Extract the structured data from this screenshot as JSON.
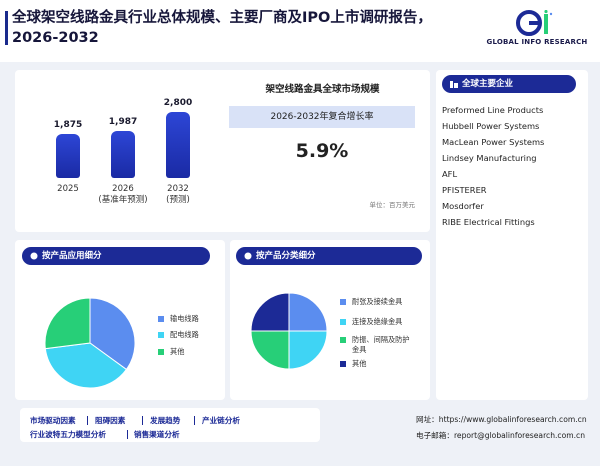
{
  "header": {
    "title": "全球架空线路金具行业总体规模、主要厂商及IPO上市调研报告，2026-2032",
    "logo_text": "GLOBAL INFO RESEARCH"
  },
  "market": {
    "bars": [
      {
        "value_label": "1,875",
        "year": "2025",
        "sub": ""
      },
      {
        "value_label": "1,987",
        "year": "2026",
        "sub": "(基准年预测)"
      },
      {
        "value_label": "2,800",
        "year": "2032",
        "sub": "(预测)"
      }
    ],
    "panel_title": "架空线路金具全球市场规模",
    "cagr_label": "2026-2032年复合增长率",
    "cagr_value": "5.9%",
    "unit": "单位：百万美元"
  },
  "chart_data": [
    {
      "type": "bar",
      "categories": [
        "2025",
        "2026",
        "2032"
      ],
      "values": [
        1875,
        1987,
        2800
      ]
    },
    {
      "type": "pie",
      "title": "按产品应用细分",
      "labels": [
        "输电线路",
        "配电线路",
        "其他"
      ],
      "values": [
        35,
        38,
        27
      ],
      "colors": [
        "#5b8def",
        "#3fd4f4",
        "#27cf78"
      ]
    },
    {
      "type": "pie",
      "title": "按产品分类细分",
      "labels": [
        "耐张及接续金具",
        "连接及绝缘金具",
        "防振、间隔及防护金具",
        "其他"
      ],
      "values": [
        25,
        25,
        25,
        25
      ],
      "colors": [
        "#5b8def",
        "#3fd4f4",
        "#27cf78",
        "#1c2a96"
      ]
    }
  ],
  "companies": {
    "title": "全球主要企业",
    "items": [
      "Preformed Line Products",
      "Hubbell Power Systems",
      "MacLean Power Systems",
      "Lindsey Manufacturing",
      "AFL",
      "PFISTERER",
      "Mosdorfer",
      "RIBE Electrical Fittings"
    ]
  },
  "application": {
    "title": "按产品应用细分",
    "legend": [
      "输电线路",
      "配电线路",
      "其他"
    ]
  },
  "product": {
    "title": "按产品分类细分",
    "legend": [
      "耐张及接续金具",
      "连接及绝缘金具",
      "防振、间隔及防护\n金具",
      "其他"
    ]
  },
  "footer": {
    "links_row1": [
      "市场驱动因素",
      "阻碍因素",
      "发展趋势",
      "产业链分析"
    ],
    "links_row2": [
      "行业波特五力模型分析",
      "销售渠道分析"
    ],
    "website": "网址：https://www.globalinforesearch.com.cn",
    "email": "电子邮箱：report@globalinforesearch.com.cn"
  },
  "colors": {
    "navy": "#1c2a96",
    "blue": "#5b8def",
    "cyan": "#3fd4f4",
    "green": "#27cf78"
  }
}
